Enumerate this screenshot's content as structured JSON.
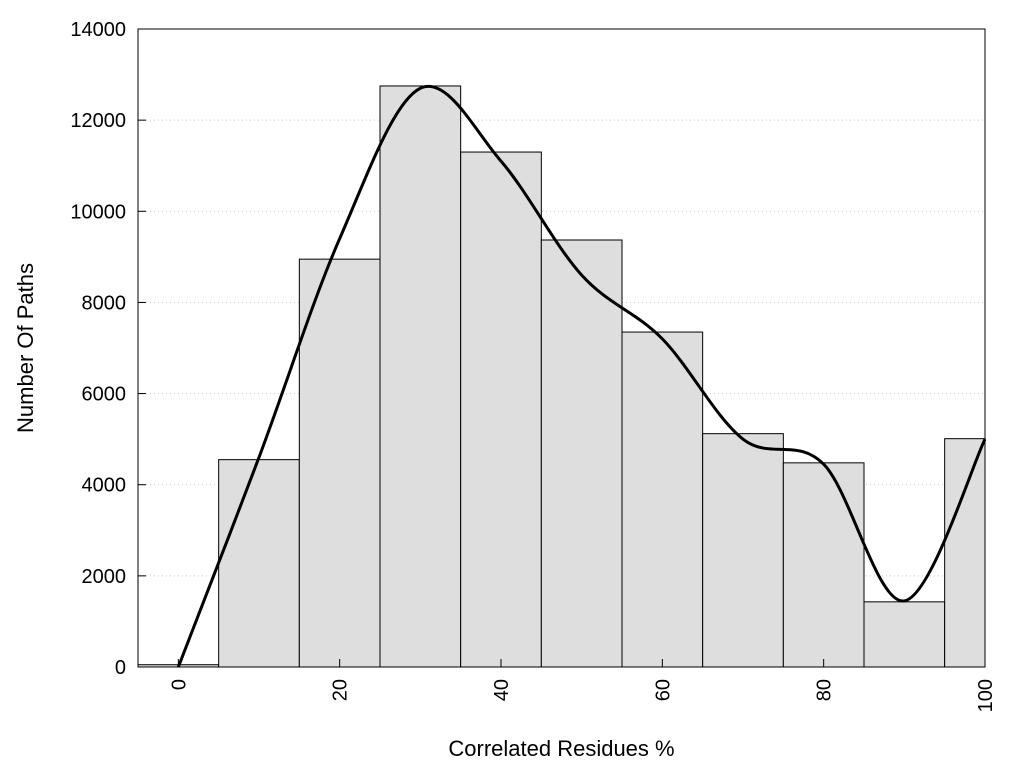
{
  "chart_data": {
    "type": "bar",
    "title": "",
    "xlabel": "Correlated Residues %",
    "ylabel": "Number Of Paths",
    "xlim": [
      -5,
      100
    ],
    "ylim": [
      0,
      14000
    ],
    "x_ticks": [
      0,
      20,
      40,
      60,
      80,
      100
    ],
    "y_ticks": [
      0,
      2000,
      4000,
      6000,
      8000,
      10000,
      12000,
      14000
    ],
    "bin_width": 10,
    "x": [
      0,
      10,
      20,
      30,
      40,
      50,
      60,
      70,
      80,
      90,
      100
    ],
    "values": [
      50,
      4550,
      8950,
      12750,
      11300,
      9370,
      7350,
      5120,
      4480,
      1430,
      5010
    ],
    "bar_color": "#dedede",
    "grid": "horizontal dotted",
    "series": [
      {
        "type": "line",
        "x": [
          0,
          10,
          20,
          30,
          40,
          50,
          60,
          70,
          80,
          90,
          100
        ],
        "values": [
          0,
          4600,
          9400,
          12700,
          11100,
          8600,
          7200,
          5000,
          4450,
          1450,
          5000
        ]
      }
    ]
  }
}
